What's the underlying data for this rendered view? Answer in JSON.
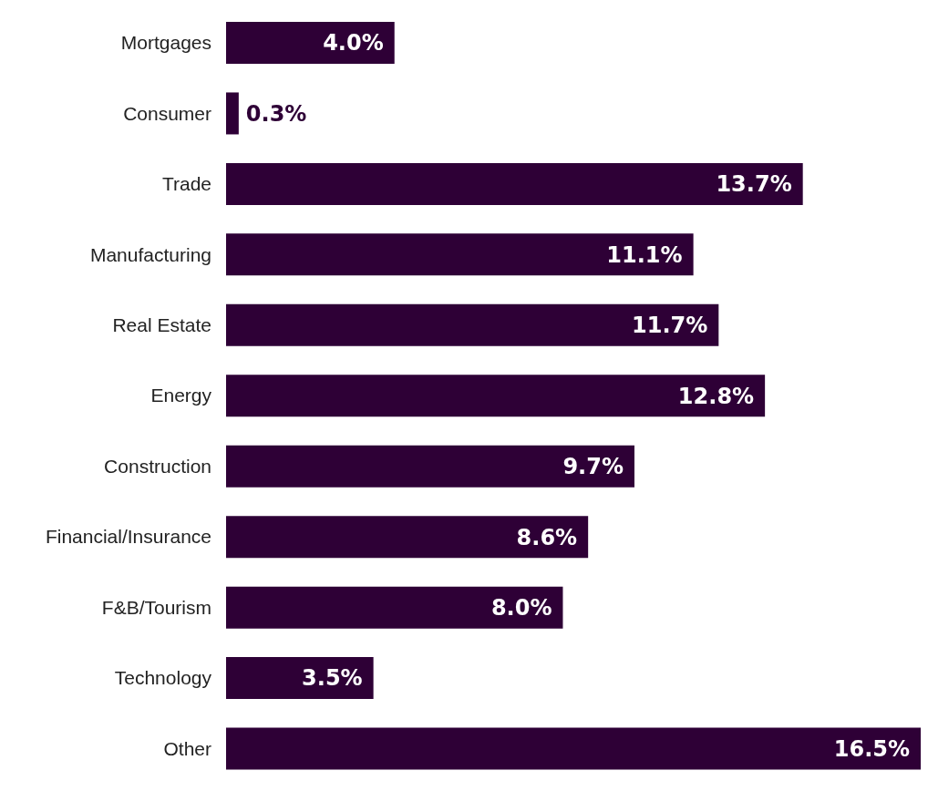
{
  "chart_data": {
    "type": "bar",
    "orientation": "horizontal",
    "categories": [
      "Mortgages",
      "Consumer",
      "Trade",
      "Manufacturing",
      "Real Estate",
      "Energy",
      "Construction",
      "Financial/Insurance",
      "F&B/Tourism",
      "Technology",
      "Other"
    ],
    "values": [
      4.0,
      0.3,
      13.7,
      11.1,
      11.7,
      12.8,
      9.7,
      8.6,
      8.0,
      3.5,
      16.5
    ],
    "value_labels": [
      "4.0%",
      "0.3%",
      "13.7%",
      "11.1%",
      "11.7%",
      "12.8%",
      "9.7%",
      "8.6%",
      "8.0%",
      "3.5%",
      "16.5%"
    ],
    "color": "#2e0036",
    "grid": false,
    "legend": false
  }
}
